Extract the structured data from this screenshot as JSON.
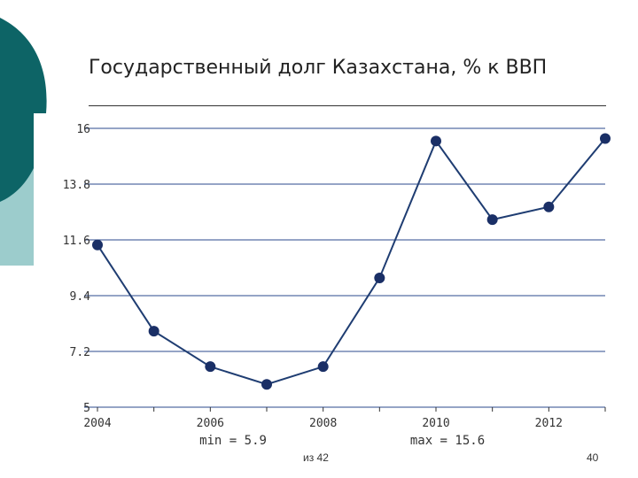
{
  "colors": {
    "line": "#1f3d72",
    "marker": "#1a2f66",
    "grid": "#2b4a8c",
    "deco_dark": "#0d6466",
    "deco_light": "#9ccccc"
  },
  "slide": {
    "title": "Государственный долг Казахстана, % к ВВП",
    "page_label": "из 42",
    "page_number": "40"
  },
  "chart_data": {
    "type": "line",
    "title": "Государственный долг Казахстана, % к ВВП",
    "xlabel": "",
    "ylabel": "",
    "x": [
      2004,
      2005,
      2006,
      2007,
      2008,
      2009,
      2010,
      2011,
      2012,
      2013
    ],
    "series": [
      {
        "values": [
          11.4,
          8.0,
          6.6,
          5.9,
          6.6,
          10.1,
          15.5,
          12.4,
          12.9,
          15.6
        ]
      }
    ],
    "xlim": [
      2004,
      2013
    ],
    "ylim": [
      5,
      16
    ],
    "yticks": [
      "16",
      "13.8",
      "11.6",
      "9.4",
      "7.2",
      "5"
    ],
    "xticks": [
      "2004",
      "2006",
      "2008",
      "2010",
      "2012"
    ],
    "stats": {
      "min_label": "min = 5.9",
      "max_label": "max = 15.6"
    },
    "grid": true
  }
}
